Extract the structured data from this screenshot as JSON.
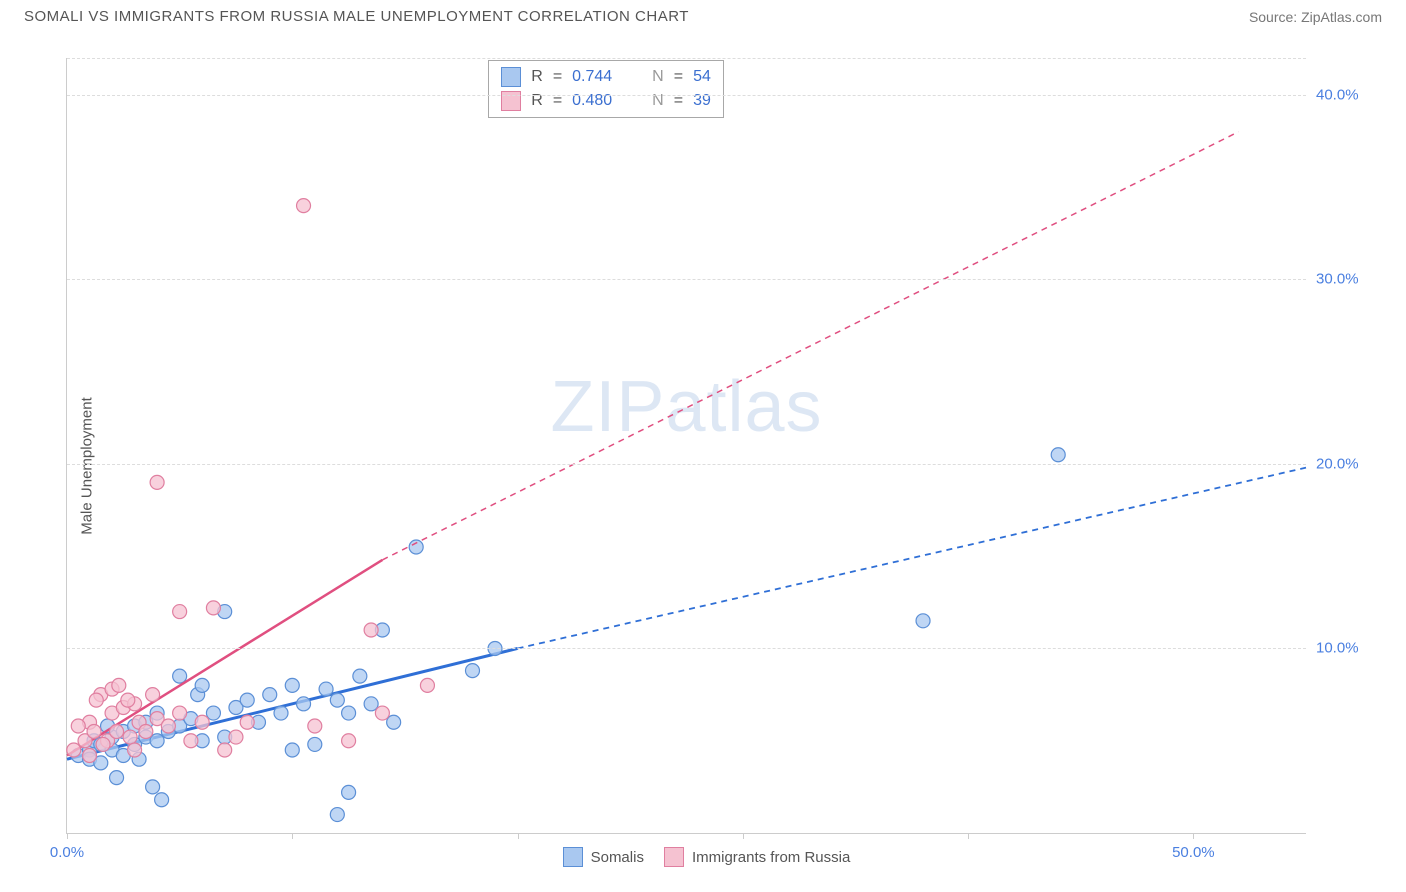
{
  "header": {
    "title": "SOMALI VS IMMIGRANTS FROM RUSSIA MALE UNEMPLOYMENT CORRELATION CHART",
    "source": "Source: ZipAtlas.com"
  },
  "ylabel": "Male Unemployment",
  "watermark_a": "ZIP",
  "watermark_b": "atlas",
  "chart": {
    "type": "scatter",
    "xlim": [
      0,
      55
    ],
    "ylim": [
      0,
      42
    ],
    "yticks": [
      {
        "v": 10,
        "label": "10.0%"
      },
      {
        "v": 20,
        "label": "20.0%"
      },
      {
        "v": 30,
        "label": "30.0%"
      },
      {
        "v": 40,
        "label": "40.0%"
      }
    ],
    "xticks": [
      {
        "v": 0,
        "label": "0.0%"
      },
      {
        "v": 10,
        "label": ""
      },
      {
        "v": 20,
        "label": ""
      },
      {
        "v": 30,
        "label": ""
      },
      {
        "v": 40,
        "label": ""
      },
      {
        "v": 50,
        "label": "50.0%"
      }
    ],
    "grid_color": "#dddddd",
    "axis_color": "#cccccc",
    "background": "#ffffff",
    "series": [
      {
        "name": "Somalis",
        "color_fill": "#a9c8f0",
        "color_stroke": "#5b8fd6",
        "marker_radius": 7,
        "trend": {
          "x1": 0,
          "y1": 4.0,
          "x2_solid": 20,
          "y2_solid": 10.0,
          "x2_dash": 55,
          "y2_dash": 19.8,
          "stroke": "#2f6fd6",
          "width": 3
        },
        "points": [
          [
            0.5,
            4.2
          ],
          [
            1,
            4.5
          ],
          [
            1,
            4.0
          ],
          [
            1.2,
            5.0
          ],
          [
            1.5,
            3.8
          ],
          [
            1.5,
            4.8
          ],
          [
            2,
            4.5
          ],
          [
            2,
            5.2
          ],
          [
            2.2,
            3.0
          ],
          [
            2.5,
            4.2
          ],
          [
            2.5,
            5.5
          ],
          [
            3,
            4.8
          ],
          [
            3,
            5.8
          ],
          [
            3.2,
            4.0
          ],
          [
            3.5,
            5.2
          ],
          [
            3.5,
            6.0
          ],
          [
            4,
            5.0
          ],
          [
            4,
            6.5
          ],
          [
            4.2,
            1.8
          ],
          [
            4.5,
            5.5
          ],
          [
            5,
            8.5
          ],
          [
            5,
            5.8
          ],
          [
            5.5,
            6.2
          ],
          [
            5.8,
            7.5
          ],
          [
            6,
            5.0
          ],
          [
            6,
            8.0
          ],
          [
            6.5,
            6.5
          ],
          [
            7,
            5.2
          ],
          [
            7,
            12.0
          ],
          [
            7.5,
            6.8
          ],
          [
            8,
            7.2
          ],
          [
            8.5,
            6.0
          ],
          [
            9,
            7.5
          ],
          [
            9.5,
            6.5
          ],
          [
            10,
            4.5
          ],
          [
            10,
            8.0
          ],
          [
            10.5,
            7.0
          ],
          [
            11,
            4.8
          ],
          [
            11.5,
            7.8
          ],
          [
            12,
            7.2
          ],
          [
            12,
            1.0
          ],
          [
            12.5,
            6.5
          ],
          [
            13,
            8.5
          ],
          [
            13.5,
            7.0
          ],
          [
            14,
            11.0
          ],
          [
            14.5,
            6.0
          ],
          [
            15.5,
            15.5
          ],
          [
            18,
            8.8
          ],
          [
            19,
            10.0
          ],
          [
            38,
            11.5
          ],
          [
            44,
            20.5
          ],
          [
            12.5,
            2.2
          ],
          [
            3.8,
            2.5
          ],
          [
            1.8,
            5.8
          ]
        ]
      },
      {
        "name": "Immigrants from Russia",
        "color_fill": "#f5c2d1",
        "color_stroke": "#e07fa0",
        "marker_radius": 7,
        "trend": {
          "x1": 0,
          "y1": 4.2,
          "x2_solid": 14,
          "y2_solid": 14.8,
          "x2_dash": 52,
          "y2_dash": 38.0,
          "stroke": "#e04f80",
          "width": 2.5
        },
        "points": [
          [
            0.3,
            4.5
          ],
          [
            0.8,
            5.0
          ],
          [
            1,
            4.2
          ],
          [
            1,
            6.0
          ],
          [
            1.2,
            5.5
          ],
          [
            1.5,
            7.5
          ],
          [
            1.8,
            5.0
          ],
          [
            2,
            6.5
          ],
          [
            2,
            7.8
          ],
          [
            2.2,
            5.5
          ],
          [
            2.5,
            6.8
          ],
          [
            2.8,
            5.2
          ],
          [
            3,
            7.0
          ],
          [
            3.2,
            6.0
          ],
          [
            3.5,
            5.5
          ],
          [
            3.8,
            7.5
          ],
          [
            4,
            6.2
          ],
          [
            4,
            19.0
          ],
          [
            4.5,
            5.8
          ],
          [
            5,
            6.5
          ],
          [
            5,
            12.0
          ],
          [
            5.5,
            5.0
          ],
          [
            6,
            6.0
          ],
          [
            6.5,
            12.2
          ],
          [
            7,
            4.5
          ],
          [
            7.5,
            5.2
          ],
          [
            8,
            6.0
          ],
          [
            10.5,
            34.0
          ],
          [
            11,
            5.8
          ],
          [
            12.5,
            5.0
          ],
          [
            13.5,
            11.0
          ],
          [
            14,
            6.5
          ],
          [
            16,
            8.0
          ],
          [
            1.3,
            7.2
          ],
          [
            2.3,
            8.0
          ],
          [
            0.5,
            5.8
          ],
          [
            3.0,
            4.5
          ],
          [
            1.6,
            4.8
          ],
          [
            2.7,
            7.2
          ]
        ]
      }
    ]
  },
  "stats": [
    {
      "swatch_fill": "#a9c8f0",
      "swatch_stroke": "#5b8fd6",
      "r": "0.744",
      "n": "54"
    },
    {
      "swatch_fill": "#f5c2d1",
      "swatch_stroke": "#e07fa0",
      "r": "0.480",
      "n": "39"
    }
  ],
  "legend": [
    {
      "swatch_fill": "#a9c8f0",
      "swatch_stroke": "#5b8fd6",
      "label": "Somalis"
    },
    {
      "swatch_fill": "#f5c2d1",
      "swatch_stroke": "#e07fa0",
      "label": "Immigrants from Russia"
    }
  ],
  "labels": {
    "R": "R",
    "eq": "=",
    "N": "N"
  }
}
